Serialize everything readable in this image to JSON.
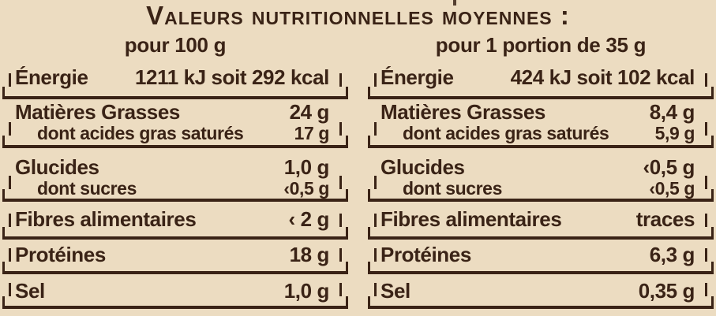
{
  "title": "Valeurs nutritionnelles moyennes :",
  "colors": {
    "background": "#ecdcc1",
    "ink": "#3a2316"
  },
  "columns": [
    {
      "header": "pour 100 g",
      "rows": [
        {
          "label": "Énergie",
          "value": "1211 kJ soit 292 kcal"
        },
        {
          "label": "Matières Grasses",
          "value": "24 g",
          "sub": {
            "label": "dont acides gras saturés",
            "value": "17 g"
          }
        },
        {
          "label": "Glucides",
          "value": "1,0 g",
          "sub": {
            "label": "dont sucres",
            "value": "‹0,5 g"
          }
        },
        {
          "label": "Fibres alimentaires",
          "value": "‹ 2 g"
        },
        {
          "label": "Protéines",
          "value": "18 g"
        },
        {
          "label": "Sel",
          "value": "1,0 g"
        }
      ]
    },
    {
      "header": "pour 1 portion de 35 g",
      "rows": [
        {
          "label": "Énergie",
          "value": "424 kJ soit 102 kcal"
        },
        {
          "label": "Matières Grasses",
          "value": "8,4 g",
          "sub": {
            "label": "dont acides gras saturés",
            "value": "5,9 g"
          }
        },
        {
          "label": "Glucides",
          "value": "‹0,5 g",
          "sub": {
            "label": "dont sucres",
            "value": "‹0,5 g"
          }
        },
        {
          "label": "Fibres alimentaires",
          "value": "traces"
        },
        {
          "label": "Protéines",
          "value": "6,3 g"
        },
        {
          "label": "Sel",
          "value": "0,35 g"
        }
      ]
    }
  ]
}
